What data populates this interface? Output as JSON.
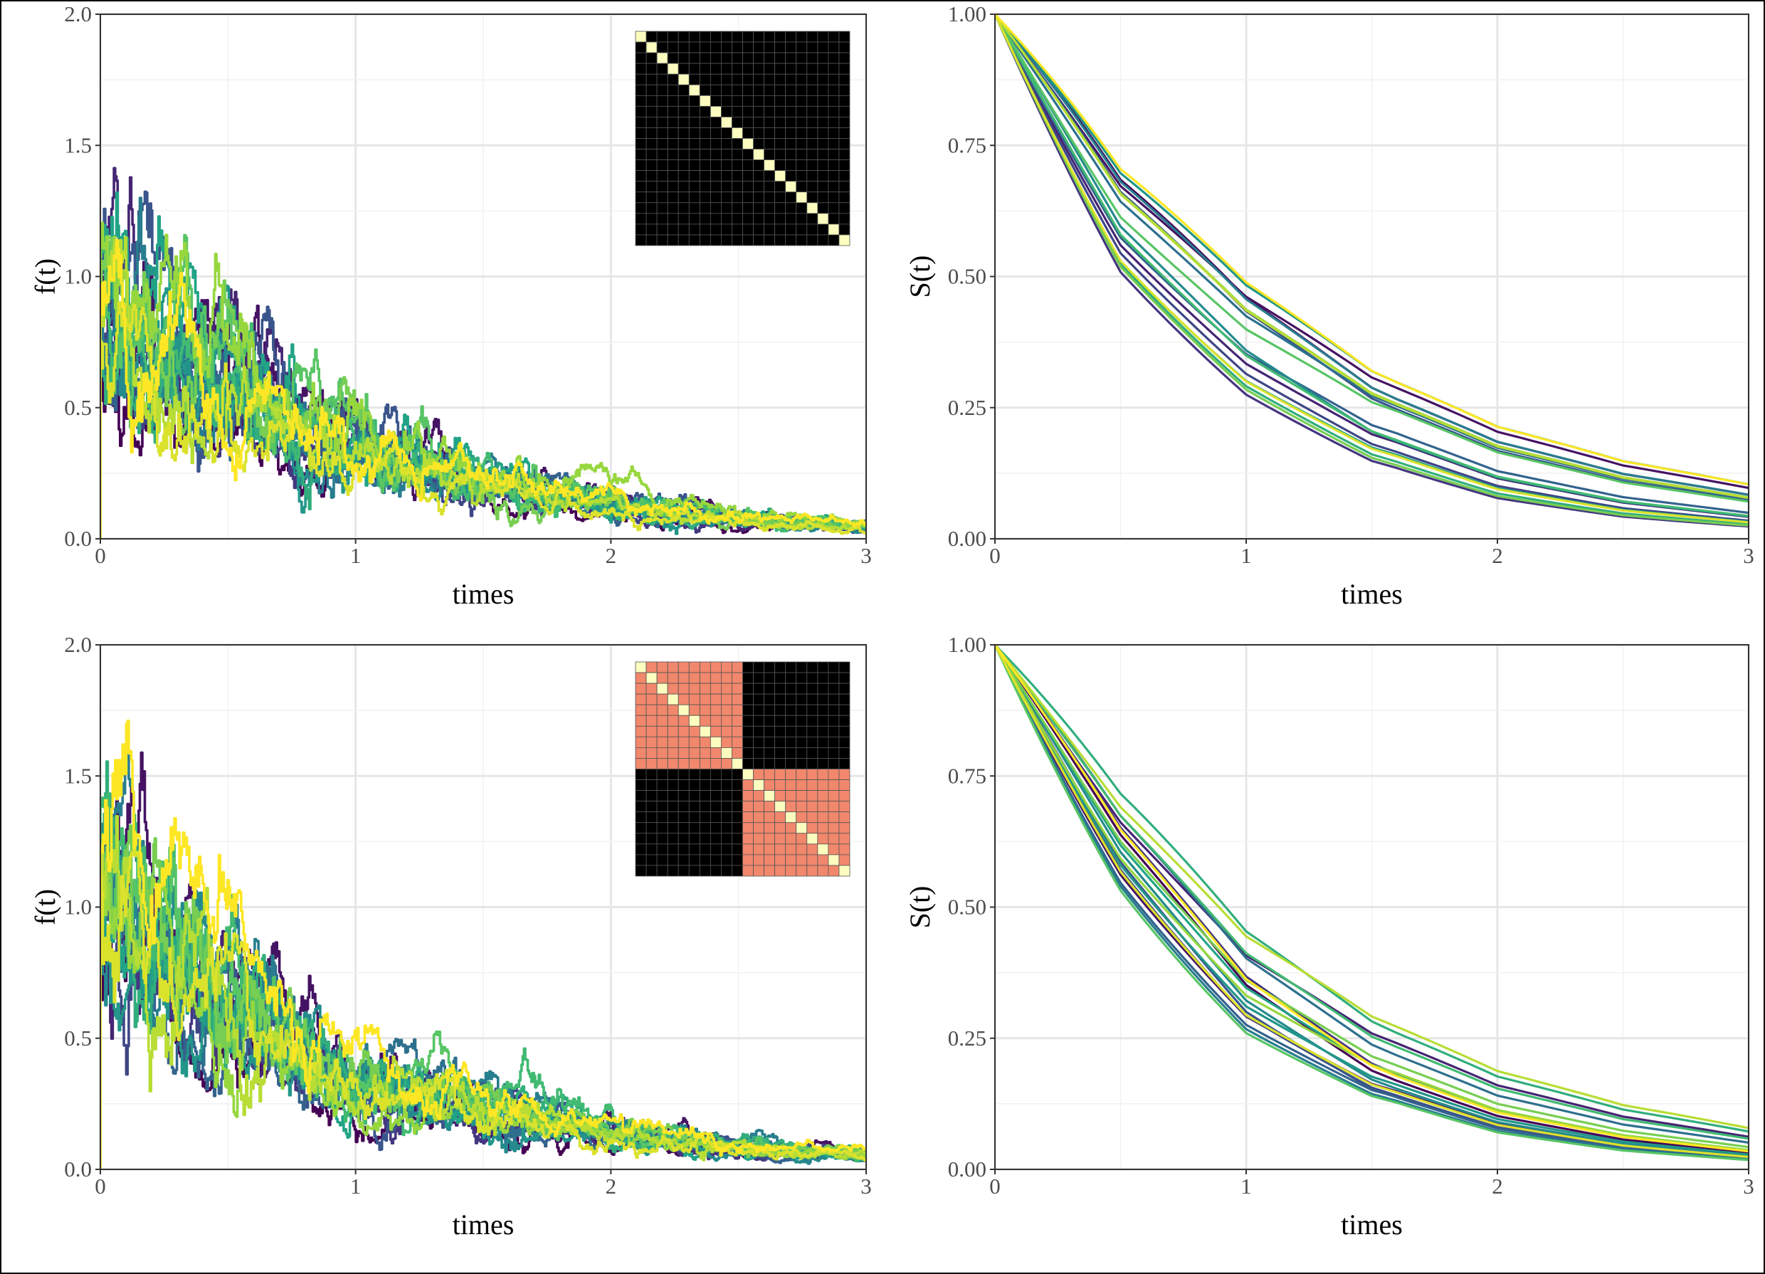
{
  "chart_data": [
    {
      "type": "line",
      "style": "jagged-step",
      "panel": "top-left",
      "xlabel": "times",
      "ylabel": "f(t)",
      "xlim": [
        0,
        3
      ],
      "ylim": [
        0,
        2
      ],
      "xticks": [
        "0",
        "1",
        "2",
        "3"
      ],
      "yticks": [
        "0.0",
        "0.5",
        "1.0",
        "1.5",
        "2.0"
      ],
      "grid": true,
      "n_series": 20,
      "palette": [
        "#440154",
        "#46327e",
        "#365c8d",
        "#277f8e",
        "#1fa187",
        "#4ac16d",
        "#a0da39",
        "#fde725"
      ],
      "trend": {
        "x": [
          0,
          0.25,
          0.5,
          0.75,
          1,
          1.5,
          2,
          2.5,
          3
        ],
        "y": [
          1.0,
          0.78,
          0.6,
          0.47,
          0.37,
          0.22,
          0.14,
          0.08,
          0.05
        ]
      },
      "inset_matrix": {
        "size": 20,
        "blocks": 1,
        "diag_color": "#fcfdbf",
        "in_block_color": "#000000",
        "off_block_color": "#000000",
        "grid_color": "#555555"
      }
    },
    {
      "type": "line",
      "panel": "top-right",
      "xlabel": "times",
      "ylabel": "S(t)",
      "xlim": [
        0,
        3
      ],
      "ylim": [
        0,
        1
      ],
      "xticks": [
        "0",
        "1",
        "2",
        "3"
      ],
      "yticks": [
        "0.00",
        "0.25",
        "0.50",
        "0.75",
        "1.00"
      ],
      "grid": true,
      "n_series": 20,
      "palette": [
        "#440154",
        "#46327e",
        "#365c8d",
        "#277f8e",
        "#1fa187",
        "#4ac16d",
        "#a0da39",
        "#fde725"
      ],
      "trend": {
        "x": [
          0,
          0.5,
          1,
          1.5,
          2,
          2.5,
          3
        ],
        "y": [
          1.0,
          0.6,
          0.37,
          0.22,
          0.13,
          0.08,
          0.05
        ]
      }
    },
    {
      "type": "line",
      "style": "jagged-step",
      "panel": "bottom-left",
      "xlabel": "times",
      "ylabel": "f(t)",
      "xlim": [
        0,
        3
      ],
      "ylim": [
        0,
        2
      ],
      "xticks": [
        "0",
        "1",
        "2",
        "3"
      ],
      "yticks": [
        "0.0",
        "0.5",
        "1.0",
        "1.5",
        "2.0"
      ],
      "grid": true,
      "n_series": 20,
      "palette": [
        "#440154",
        "#46327e",
        "#365c8d",
        "#277f8e",
        "#1fa187",
        "#4ac16d",
        "#a0da39",
        "#fde725"
      ],
      "trend": {
        "x": [
          0,
          0.25,
          0.5,
          0.75,
          1,
          1.5,
          2,
          2.5,
          3
        ],
        "y": [
          1.0,
          0.8,
          0.62,
          0.42,
          0.3,
          0.22,
          0.13,
          0.08,
          0.05
        ]
      },
      "inset_matrix": {
        "size": 20,
        "blocks": 2,
        "diag_color": "#fcfdbf",
        "in_block_color": "#f1876c",
        "off_block_color": "#000000",
        "grid_color": "#555555"
      }
    },
    {
      "type": "line",
      "panel": "bottom-right",
      "xlabel": "times",
      "ylabel": "S(t)",
      "xlim": [
        0,
        3
      ],
      "ylim": [
        0,
        1
      ],
      "xticks": [
        "0",
        "1",
        "2",
        "3"
      ],
      "yticks": [
        "0.00",
        "0.25",
        "0.50",
        "0.75",
        "1.00"
      ],
      "grid": true,
      "n_series": 20,
      "palette": [
        "#440154",
        "#46327e",
        "#365c8d",
        "#277f8e",
        "#1fa187",
        "#4ac16d",
        "#a0da39",
        "#fde725"
      ],
      "trend": {
        "x": [
          0,
          0.5,
          1,
          1.5,
          2,
          2.5,
          3
        ],
        "y": [
          1.0,
          0.63,
          0.36,
          0.21,
          0.12,
          0.07,
          0.04
        ]
      }
    }
  ]
}
